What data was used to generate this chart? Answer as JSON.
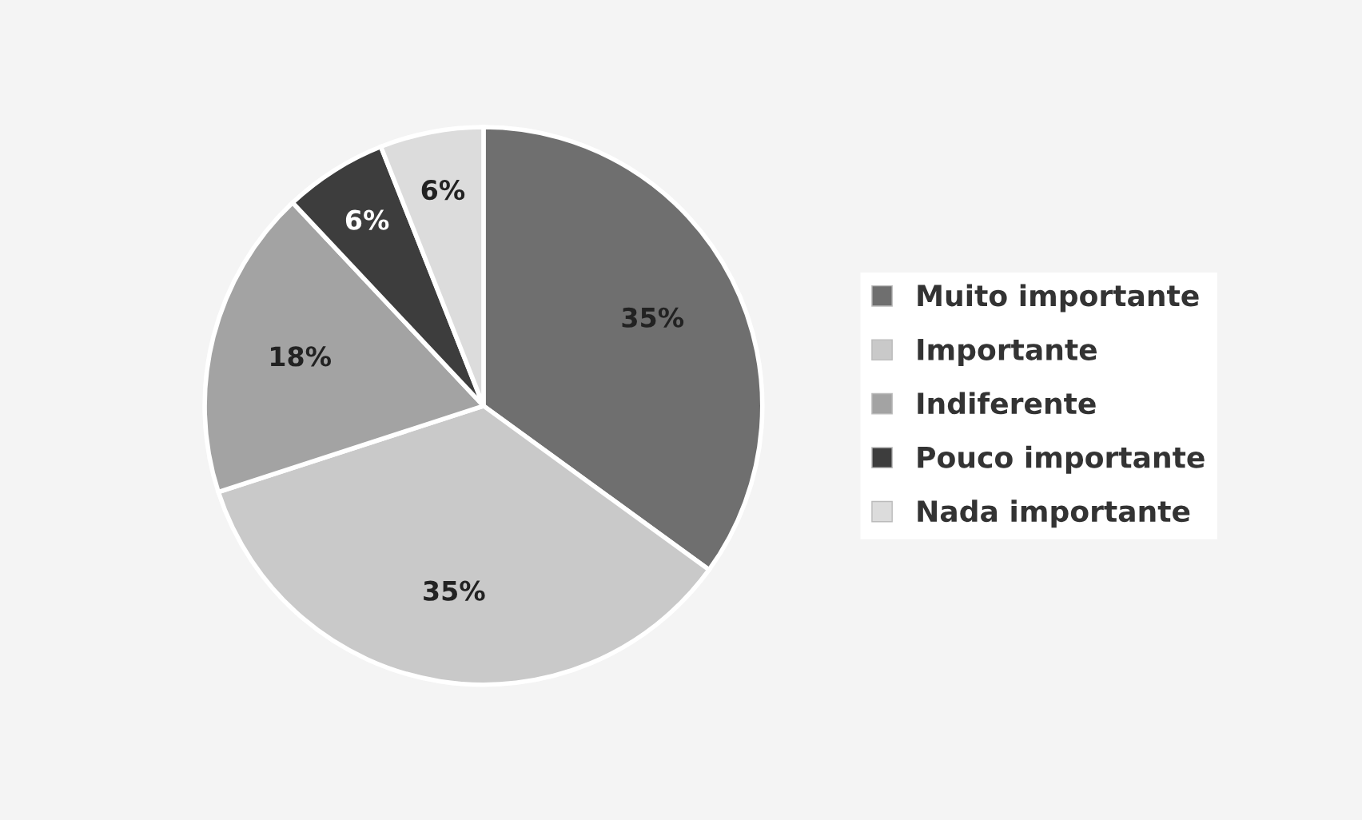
{
  "chart_data": {
    "type": "pie",
    "categories": [
      "Muito importante",
      "Importante",
      "Indiferente",
      "Pouco importante",
      "Nada importante"
    ],
    "values": [
      35,
      35,
      18,
      6,
      6
    ],
    "colors": [
      "#6f6f6f",
      "#c9c9c9",
      "#a3a3a3",
      "#3d3d3d",
      "#dcdcdc"
    ],
    "value_labels": [
      "35%",
      "35%",
      "18%",
      "6%",
      "6%"
    ],
    "legend": "right"
  }
}
